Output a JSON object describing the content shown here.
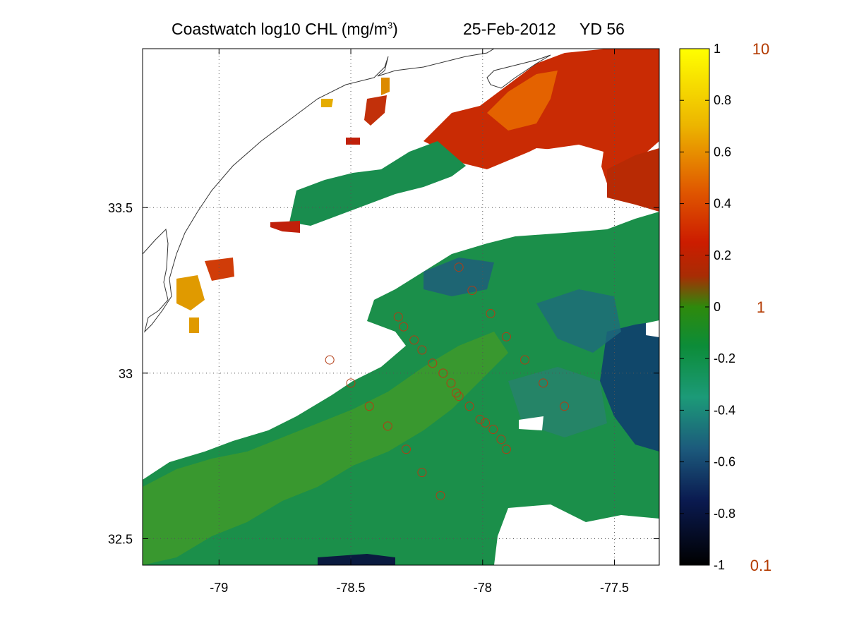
{
  "title": {
    "main": "Coastwatch  log10  CHL (mg/m",
    "main_sup": "3",
    "main_end": ")",
    "date": "25-Feb-2012",
    "yearday": "YD 56"
  },
  "map": {
    "x_ticks": [
      "-79",
      "-78.5",
      "-78",
      "-77.5"
    ],
    "y_ticks": [
      "33.5",
      "33",
      "32.5"
    ],
    "x_tick_values": [
      -79,
      -78.5,
      -78,
      -77.5
    ],
    "y_tick_values": [
      33.5,
      33.0,
      32.5
    ],
    "lon_range": [
      -79.29,
      -77.33
    ],
    "lat_range": [
      32.42,
      33.98
    ],
    "grid": true,
    "colors": {
      "coastline": "#333333",
      "station_marker": "#b23c14",
      "land_or_cloud": "#ffffff"
    },
    "stations": [
      {
        "lon": -78.32,
        "lat": 33.17
      },
      {
        "lon": -78.3,
        "lat": 33.14
      },
      {
        "lon": -78.26,
        "lat": 33.1
      },
      {
        "lon": -78.23,
        "lat": 33.07
      },
      {
        "lon": -78.19,
        "lat": 33.03
      },
      {
        "lon": -78.15,
        "lat": 33.0
      },
      {
        "lon": -78.12,
        "lat": 32.97
      },
      {
        "lon": -78.1,
        "lat": 32.94
      },
      {
        "lon": -78.09,
        "lat": 32.93
      },
      {
        "lon": -78.05,
        "lat": 32.9
      },
      {
        "lon": -78.01,
        "lat": 32.86
      },
      {
        "lon": -77.99,
        "lat": 32.85
      },
      {
        "lon": -77.96,
        "lat": 32.83
      },
      {
        "lon": -77.93,
        "lat": 32.8
      },
      {
        "lon": -77.91,
        "lat": 32.77
      },
      {
        "lon": -78.58,
        "lat": 33.04
      },
      {
        "lon": -78.5,
        "lat": 32.97
      },
      {
        "lon": -78.43,
        "lat": 32.9
      },
      {
        "lon": -78.36,
        "lat": 32.84
      },
      {
        "lon": -78.29,
        "lat": 32.77
      },
      {
        "lon": -78.23,
        "lat": 32.7
      },
      {
        "lon": -78.16,
        "lat": 32.63
      },
      {
        "lon": -78.09,
        "lat": 33.32
      },
      {
        "lon": -78.04,
        "lat": 33.25
      },
      {
        "lon": -77.97,
        "lat": 33.18
      },
      {
        "lon": -77.91,
        "lat": 33.11
      },
      {
        "lon": -77.84,
        "lat": 33.04
      },
      {
        "lon": -77.77,
        "lat": 32.97
      },
      {
        "lon": -77.69,
        "lat": 32.9
      }
    ]
  },
  "colorbar": {
    "ticks": [
      "1",
      "0.8",
      "0.6",
      "0.4",
      "0.2",
      "0",
      "-0.2",
      "-0.4",
      "-0.6",
      "-0.8",
      "-1"
    ],
    "tick_values": [
      1,
      0.8,
      0.6,
      0.4,
      0.2,
      0,
      -0.2,
      -0.4,
      -0.6,
      -0.8,
      -1
    ],
    "right_labels": [
      "10",
      "1",
      "0.1"
    ],
    "right_label_values": [
      1,
      0,
      -1
    ],
    "range": [
      -1,
      1
    ],
    "colormap": [
      {
        "v": -1.0,
        "c": "#000000"
      },
      {
        "v": -0.75,
        "c": "#0a1a50"
      },
      {
        "v": -0.55,
        "c": "#1c5a7c"
      },
      {
        "v": -0.35,
        "c": "#1c9a78"
      },
      {
        "v": -0.15,
        "c": "#0c8c38"
      },
      {
        "v": 0.0,
        "c": "#2e8a0c"
      },
      {
        "v": 0.12,
        "c": "#a82c04"
      },
      {
        "v": 0.25,
        "c": "#cc1c00"
      },
      {
        "v": 0.45,
        "c": "#e05800"
      },
      {
        "v": 0.7,
        "c": "#ecb400"
      },
      {
        "v": 1.0,
        "c": "#ffff00"
      }
    ]
  }
}
